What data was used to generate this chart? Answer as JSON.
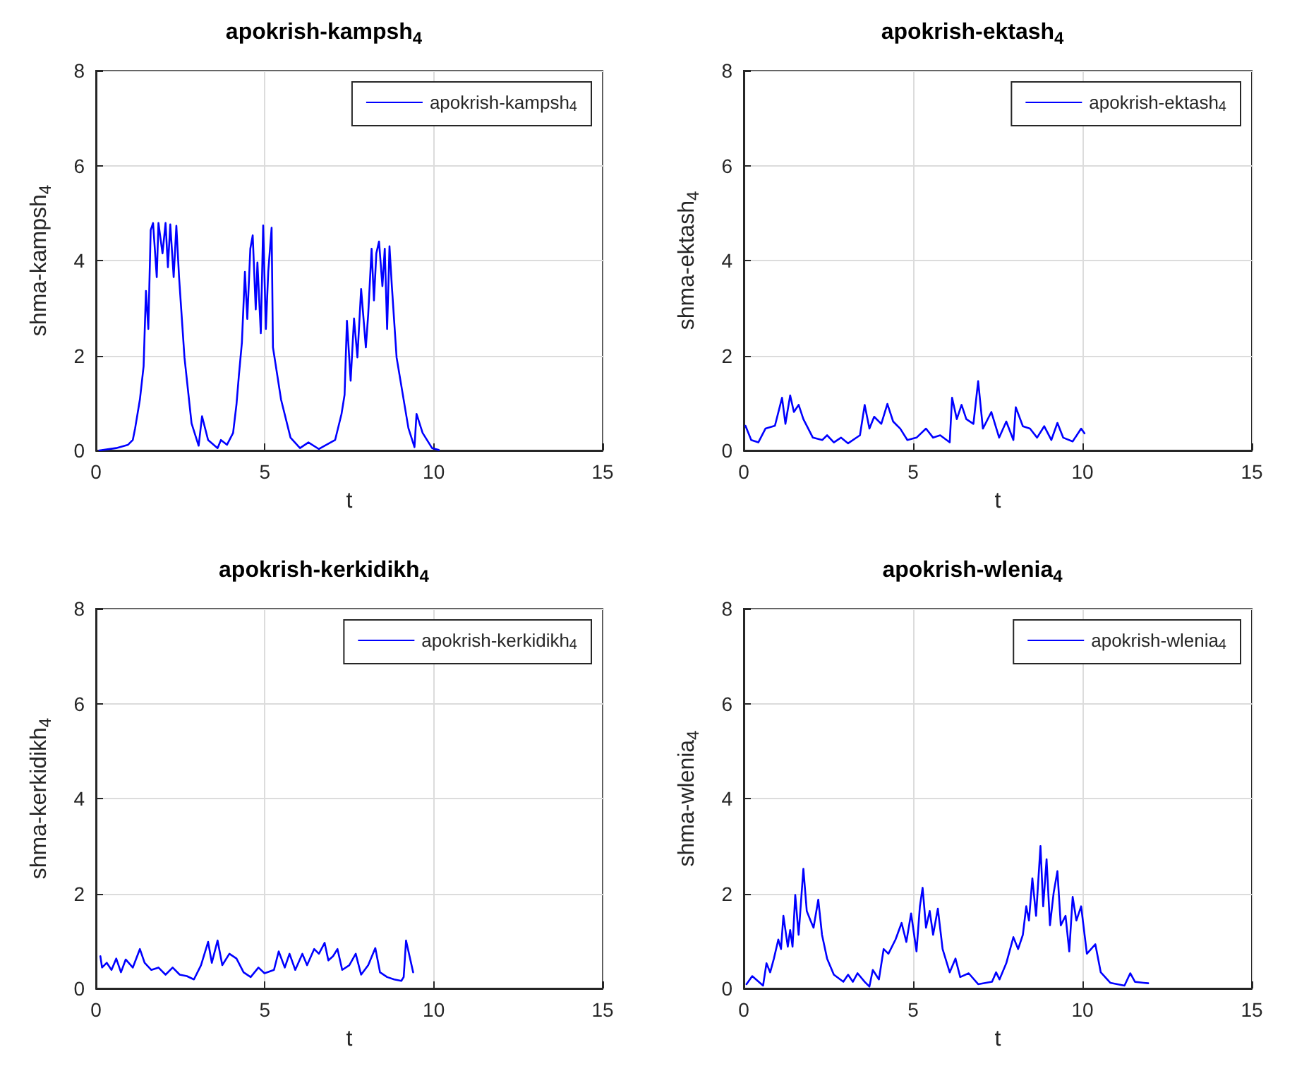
{
  "chart_data": [
    {
      "type": "line",
      "title": "apokrish-kampsh$_{4}$",
      "xlabel": "t",
      "ylabel": "shma-kampsh$_{4}$",
      "xlim": [
        0,
        15
      ],
      "xticks": [
        0,
        5,
        10,
        15
      ],
      "ylim": [
        0,
        8
      ],
      "yticks": [
        0,
        2,
        4,
        6,
        8
      ],
      "grid": true,
      "legend": "top right",
      "series": [
        {
          "name": "apokrish-kampsh$_{4}$",
          "color": "#0000ff",
          "x": [
            0.1,
            0.6,
            0.95,
            1.09,
            1.16,
            1.3,
            1.41,
            1.48,
            1.55,
            1.62,
            1.69,
            1.8,
            1.85,
            1.97,
            2.06,
            2.13,
            2.2,
            2.3,
            2.38,
            2.46,
            2.62,
            2.83,
            3.04,
            3.14,
            3.32,
            3.6,
            3.7,
            3.88,
            4.06,
            4.16,
            4.23,
            4.32,
            4.41,
            4.48,
            4.57,
            4.64,
            4.73,
            4.78,
            4.88,
            4.95,
            5.03,
            5.1,
            5.2,
            5.24,
            5.48,
            5.76,
            6.04,
            6.29,
            6.6,
            7.08,
            7.27,
            7.36,
            7.43,
            7.54,
            7.64,
            7.74,
            7.85,
            7.99,
            8.06,
            8.16,
            8.23,
            8.3,
            8.38,
            8.48,
            8.55,
            8.62,
            8.69,
            8.76,
            8.9,
            9.25,
            9.43,
            9.49,
            9.67,
            9.95,
            10.15
          ],
          "values": [
            0,
            0.05,
            0.12,
            0.22,
            0.47,
            1.07,
            1.77,
            3.36,
            2.56,
            4.64,
            4.79,
            3.65,
            4.79,
            4.15,
            4.79,
            3.86,
            4.76,
            3.65,
            4.73,
            3.65,
            1.96,
            0.57,
            0.1,
            0.72,
            0.22,
            0.05,
            0.22,
            0.12,
            0.37,
            0.97,
            1.57,
            2.27,
            3.76,
            2.77,
            4.25,
            4.53,
            2.97,
            3.96,
            2.47,
            4.74,
            2.56,
            3.76,
            4.69,
            2.17,
            1.07,
            0.27,
            0.05,
            0.17,
            0.03,
            0.22,
            0.77,
            1.17,
            2.73,
            1.47,
            2.78,
            1.96,
            3.4,
            2.17,
            2.87,
            4.25,
            3.16,
            4.15,
            4.4,
            3.46,
            4.25,
            2.56,
            4.3,
            3.46,
            1.96,
            0.47,
            0.07,
            0.77,
            0.37,
            0.05,
            0.01
          ]
        }
      ]
    },
    {
      "type": "line",
      "title": "apokrish-ektash$_{4}$",
      "xlabel": "t",
      "ylabel": "shma-ektash$_{4}$",
      "xlim": [
        0,
        15
      ],
      "xticks": [
        0,
        5,
        10,
        15
      ],
      "ylim": [
        0,
        8
      ],
      "yticks": [
        0,
        2,
        4,
        6,
        8
      ],
      "grid": true,
      "legend": "top right",
      "series": [
        {
          "name": "apokrish-ektash$_{4}$",
          "color": "#0000ff",
          "x": [
            0.05,
            0.22,
            0.43,
            0.64,
            0.92,
            1.13,
            1.23,
            1.37,
            1.48,
            1.62,
            1.76,
            2.04,
            2.32,
            2.46,
            2.66,
            2.87,
            3.08,
            3.43,
            3.57,
            3.71,
            3.85,
            4.06,
            4.24,
            4.41,
            4.62,
            4.83,
            5.1,
            5.38,
            5.59,
            5.8,
            6.08,
            6.15,
            6.29,
            6.43,
            6.57,
            6.78,
            6.92,
            7.06,
            7.31,
            7.54,
            7.75,
            7.96,
            8.03,
            8.24,
            8.45,
            8.66,
            8.87,
            9.08,
            9.26,
            9.43,
            9.71,
            9.96,
            10.06
          ],
          "values": [
            0.52,
            0.22,
            0.17,
            0.46,
            0.52,
            1.11,
            0.56,
            1.16,
            0.81,
            0.96,
            0.66,
            0.27,
            0.22,
            0.32,
            0.17,
            0.27,
            0.15,
            0.32,
            0.96,
            0.46,
            0.71,
            0.56,
            0.98,
            0.61,
            0.46,
            0.22,
            0.27,
            0.46,
            0.27,
            0.32,
            0.17,
            1.11,
            0.66,
            0.96,
            0.66,
            0.56,
            1.46,
            0.46,
            0.81,
            0.27,
            0.61,
            0.22,
            0.91,
            0.51,
            0.46,
            0.27,
            0.51,
            0.22,
            0.58,
            0.27,
            0.19,
            0.46,
            0.36
          ]
        }
      ]
    },
    {
      "type": "line",
      "title": "apokrish-kerkidikh$_{4}$",
      "xlabel": "t",
      "ylabel": "shma-kerkidikh$_{4}$",
      "xlim": [
        0,
        15
      ],
      "xticks": [
        0,
        5,
        10,
        15
      ],
      "ylim": [
        0,
        8
      ],
      "yticks": [
        0,
        2,
        4,
        6,
        8
      ],
      "grid": true,
      "legend": "top right",
      "series": [
        {
          "name": "apokrish-kerkidikh$_{4}$",
          "color": "#0000ff",
          "x": [
            0.13,
            0.18,
            0.32,
            0.46,
            0.6,
            0.74,
            0.88,
            1.09,
            1.3,
            1.44,
            1.64,
            1.85,
            2.06,
            2.27,
            2.48,
            2.69,
            2.9,
            3.11,
            3.32,
            3.43,
            3.6,
            3.74,
            3.95,
            4.16,
            4.37,
            4.58,
            4.81,
            4.99,
            5.27,
            5.41,
            5.59,
            5.73,
            5.9,
            6.11,
            6.25,
            6.46,
            6.6,
            6.77,
            6.88,
            7.02,
            7.15,
            7.29,
            7.5,
            7.69,
            7.85,
            8.06,
            8.27,
            8.41,
            8.62,
            8.83,
            9.04,
            9.11,
            9.18,
            9.39
          ],
          "values": [
            0.68,
            0.44,
            0.54,
            0.39,
            0.63,
            0.34,
            0.61,
            0.44,
            0.83,
            0.54,
            0.39,
            0.44,
            0.29,
            0.44,
            0.29,
            0.26,
            0.19,
            0.49,
            0.98,
            0.54,
            1.01,
            0.49,
            0.73,
            0.63,
            0.34,
            0.24,
            0.44,
            0.32,
            0.39,
            0.78,
            0.44,
            0.73,
            0.39,
            0.73,
            0.49,
            0.83,
            0.73,
            0.96,
            0.59,
            0.68,
            0.83,
            0.39,
            0.49,
            0.73,
            0.29,
            0.49,
            0.85,
            0.34,
            0.24,
            0.19,
            0.16,
            0.24,
            1.01,
            0.34
          ]
        }
      ]
    },
    {
      "type": "line",
      "title": "apokrish-wlenia$_{4}$",
      "xlabel": "t",
      "ylabel": "shma-wlenia$_{4}$",
      "xlim": [
        0,
        15
      ],
      "xticks": [
        0,
        5,
        10,
        15
      ],
      "ylim": [
        0,
        8
      ],
      "yticks": [
        0,
        2,
        4,
        6,
        8
      ],
      "grid": true,
      "legend": "top right",
      "series": [
        {
          "name": "apokrish-wlenia$_{4}$",
          "color": "#0000ff",
          "x": [
            0.08,
            0.25,
            0.57,
            0.67,
            0.78,
            0.89,
            1.02,
            1.1,
            1.17,
            1.3,
            1.37,
            1.44,
            1.52,
            1.62,
            1.76,
            1.86,
            1.97,
            2.06,
            2.2,
            2.31,
            2.46,
            2.66,
            2.94,
            3.08,
            3.22,
            3.36,
            3.57,
            3.71,
            3.81,
            3.99,
            4.13,
            4.27,
            4.48,
            4.66,
            4.8,
            4.94,
            5.1,
            5.2,
            5.28,
            5.38,
            5.49,
            5.59,
            5.73,
            5.87,
            6.08,
            6.25,
            6.39,
            6.64,
            6.92,
            7.33,
            7.45,
            7.55,
            7.75,
            7.96,
            8.1,
            8.24,
            8.34,
            8.42,
            8.52,
            8.63,
            8.76,
            8.84,
            8.94,
            9.04,
            9.15,
            9.26,
            9.36,
            9.5,
            9.61,
            9.71,
            9.82,
            9.96,
            10.13,
            10.38,
            10.54,
            10.82,
            11.24,
            11.41,
            11.55,
            11.8,
            11.94
          ],
          "values": [
            0.09,
            0.26,
            0.06,
            0.53,
            0.34,
            0.63,
            1.03,
            0.83,
            1.53,
            0.88,
            1.23,
            0.88,
            1.97,
            1.13,
            2.52,
            1.63,
            1.43,
            1.28,
            1.87,
            1.13,
            0.63,
            0.29,
            0.14,
            0.29,
            0.14,
            0.32,
            0.14,
            0.04,
            0.39,
            0.19,
            0.83,
            0.73,
            1.03,
            1.38,
            0.98,
            1.58,
            0.78,
            1.73,
            2.12,
            1.28,
            1.63,
            1.13,
            1.68,
            0.83,
            0.34,
            0.63,
            0.24,
            0.32,
            0.09,
            0.14,
            0.34,
            0.19,
            0.53,
            1.08,
            0.83,
            1.13,
            1.73,
            1.43,
            2.32,
            1.53,
            3.0,
            1.73,
            2.72,
            1.33,
            2.02,
            2.47,
            1.33,
            1.53,
            0.78,
            1.93,
            1.43,
            1.73,
            0.73,
            0.93,
            0.34,
            0.12,
            0.06,
            0.32,
            0.14,
            0.12,
            0.11
          ]
        }
      ]
    }
  ]
}
